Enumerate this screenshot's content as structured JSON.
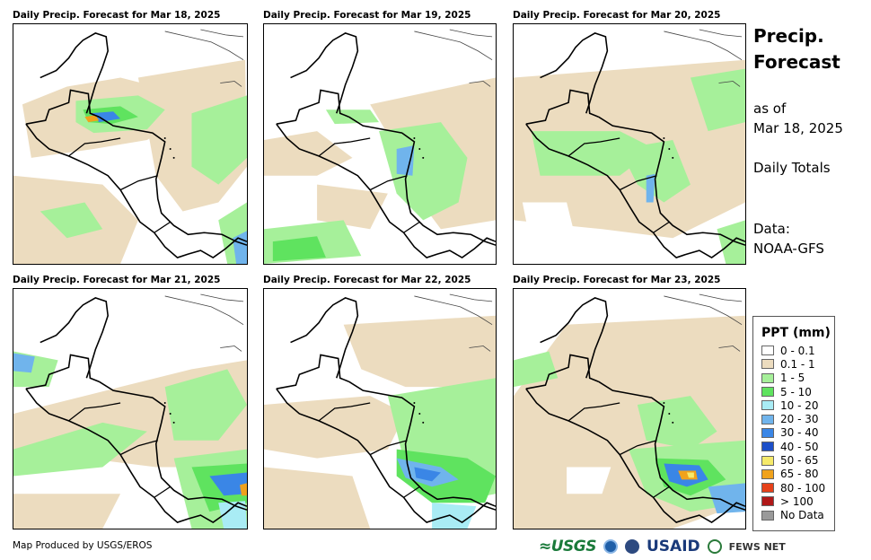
{
  "panels": [
    {
      "title": "Daily Precip. Forecast for Mar 18, 2025"
    },
    {
      "title": "Daily Precip. Forecast for Mar 19, 2025"
    },
    {
      "title": "Daily Precip. Forecast for Mar 20, 2025"
    },
    {
      "title": "Daily Precip. Forecast for Mar 21, 2025"
    },
    {
      "title": "Daily Precip. Forecast for Mar 22, 2025"
    },
    {
      "title": "Daily Precip. Forecast for Mar 23, 2025"
    }
  ],
  "sidebar": {
    "title_line1": "Precip.",
    "title_line2": "Forecast",
    "asof_line1": "as of",
    "asof_line2": "Mar 18, 2025",
    "totals": "Daily Totals",
    "data_line1": "Data:",
    "data_line2": "NOAA-GFS"
  },
  "legend": {
    "title": "PPT (mm)",
    "items": [
      {
        "label": "0 - 0.1",
        "color": "#ffffff"
      },
      {
        "label": "0.1 - 1",
        "color": "#ecdcbf"
      },
      {
        "label": "1 - 5",
        "color": "#a6f09a"
      },
      {
        "label": "5 - 10",
        "color": "#5fe35f"
      },
      {
        "label": "10 - 20",
        "color": "#a9ecf5"
      },
      {
        "label": "20 - 30",
        "color": "#70b4ec"
      },
      {
        "label": "30 - 40",
        "color": "#3a86e6"
      },
      {
        "label": "40 - 50",
        "color": "#1c4fc9"
      },
      {
        "label": "50 - 65",
        "color": "#f6ea6a"
      },
      {
        "label": "65 - 80",
        "color": "#f0a21c"
      },
      {
        "label": "80 - 100",
        "color": "#e6411a"
      },
      {
        "label": "> 100",
        "color": "#b01818"
      },
      {
        "label": "No Data",
        "color": "#9a9a9a"
      }
    ]
  },
  "footer": {
    "credit": "Map Produced by USGS/EROS"
  },
  "logos": {
    "usgs": "≈USGS",
    "usaid": "USAID",
    "fews": "FEWS NET"
  }
}
